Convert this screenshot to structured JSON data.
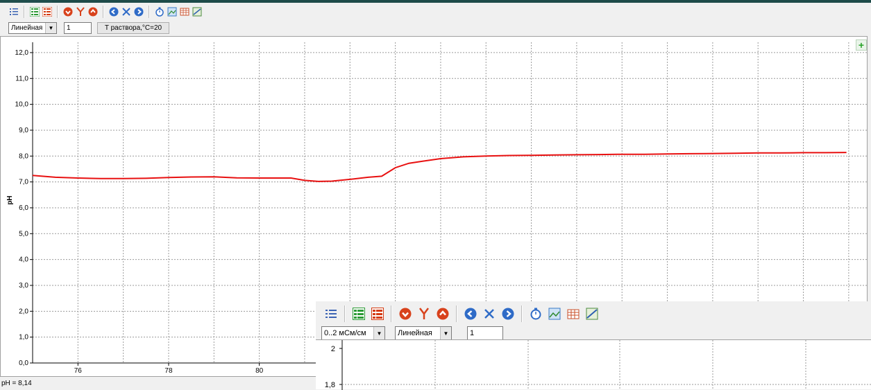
{
  "toolbar": {
    "buttons": [
      {
        "icon": "list-icon",
        "color": "#3b63b4"
      },
      {
        "icon": "green-list-icon",
        "color": "#2a9a34"
      },
      {
        "icon": "red-list-icon",
        "color": "#d43a10"
      },
      {
        "icon": "arrow-down-icon",
        "color": "#d8421c"
      },
      {
        "icon": "y-axis-icon",
        "color": "#d8421c"
      },
      {
        "icon": "arrow-up-icon",
        "color": "#d8421c"
      },
      {
        "icon": "arrow-left-icon",
        "color": "#2f6bc7"
      },
      {
        "icon": "x-axis-icon",
        "color": "#2f6bc7"
      },
      {
        "icon": "arrow-right-icon",
        "color": "#2f6bc7"
      },
      {
        "icon": "stopwatch-icon",
        "color": "#2f6bc7"
      },
      {
        "icon": "image-export-icon",
        "color": "#3a7ac4"
      },
      {
        "icon": "table-icon",
        "color": "#c84f2a"
      },
      {
        "icon": "chart-export-icon",
        "color": "#4b8a3f"
      }
    ],
    "scale_select": "Линейная",
    "factor_value": "1",
    "temperature_button": "T раствора,°C=20"
  },
  "chart_data": {
    "type": "line",
    "ylabel": "pH",
    "xlabel": "",
    "xlim": [
      75.0,
      93.4
    ],
    "ylim": [
      0.0,
      12.4
    ],
    "x_ticks": [
      "76",
      "78",
      "80"
    ],
    "x_tick_values": [
      76,
      78,
      80
    ],
    "y_ticks": [
      "0,0",
      "1,0",
      "2,0",
      "3,0",
      "4,0",
      "5,0",
      "6,0",
      "7,0",
      "8,0",
      "9,0",
      "10,0",
      "11,0",
      "12,0"
    ],
    "y_tick_values": [
      0,
      1,
      2,
      3,
      4,
      5,
      6,
      7,
      8,
      9,
      10,
      11,
      12
    ],
    "grid": true,
    "line_color": "#e81010",
    "series": [
      {
        "x": [
          75.0,
          75.5,
          76.0,
          76.5,
          77.0,
          77.5,
          78.0,
          78.5,
          79.0,
          79.5,
          80.0,
          80.4,
          80.7,
          81.0,
          81.3,
          81.6,
          82.0,
          82.4,
          82.7,
          83.0,
          83.3,
          83.6,
          84.0,
          84.5,
          85.0,
          85.5,
          86.0,
          86.5,
          87.0,
          87.5,
          88.0,
          88.5,
          89.0,
          89.5,
          90.0,
          90.5,
          91.0,
          91.5,
          92.0,
          92.5,
          92.95
        ],
        "y": [
          7.25,
          7.18,
          7.15,
          7.13,
          7.13,
          7.14,
          7.17,
          7.19,
          7.2,
          7.16,
          7.15,
          7.15,
          7.15,
          7.06,
          7.02,
          7.03,
          7.1,
          7.18,
          7.22,
          7.55,
          7.72,
          7.8,
          7.9,
          7.97,
          8.0,
          8.02,
          8.03,
          8.04,
          8.05,
          8.06,
          8.07,
          8.07,
          8.08,
          8.09,
          8.1,
          8.11,
          8.12,
          8.12,
          8.13,
          8.13,
          8.14
        ]
      }
    ]
  },
  "status": {
    "text": "pH = 8,14"
  },
  "sub_window": {
    "range_select": "0..2 мСм/см",
    "scale_select": "Линейная",
    "factor_value": "1",
    "y_ticks": [
      "2",
      "1,8"
    ]
  }
}
